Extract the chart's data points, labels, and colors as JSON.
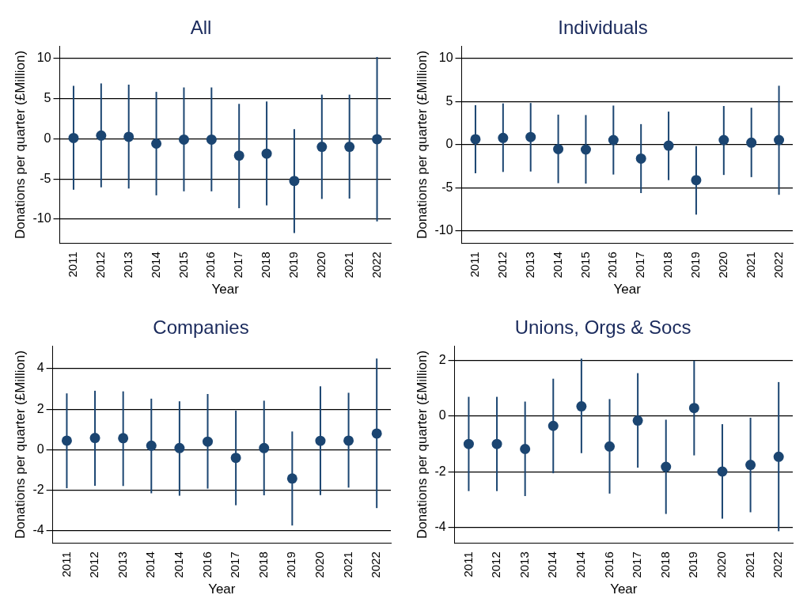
{
  "chart_data": [
    {
      "type": "scatter",
      "title": "All",
      "xlabel": "Year",
      "ylabel": "Donations per quarter (£Million)",
      "categories": [
        "2011",
        "2012",
        "2013",
        "2014",
        "2015",
        "2016",
        "2017",
        "2018",
        "2019",
        "2020",
        "2021",
        "2022"
      ],
      "series": [
        {
          "color": "#1b4571",
          "values": [
            0.1,
            0.4,
            0.25,
            -0.6,
            -0.1,
            -0.1,
            -2.1,
            -1.85,
            -5.25,
            -1.0,
            -1.0,
            -0.05
          ],
          "errors": [
            [
              -6.35,
              6.6
            ],
            [
              -6.05,
              6.9
            ],
            [
              -6.2,
              6.75
            ],
            [
              -7.05,
              5.85
            ],
            [
              -6.55,
              6.4
            ],
            [
              -6.55,
              6.4
            ],
            [
              -8.65,
              4.35
            ],
            [
              -8.3,
              4.65
            ],
            [
              -11.75,
              1.2
            ],
            [
              -7.5,
              5.5
            ],
            [
              -7.45,
              5.5
            ],
            [
              -10.3,
              10.2
            ]
          ]
        }
      ],
      "ylim": [
        -13,
        11.5
      ],
      "yticks": [
        -10,
        -5,
        0,
        5,
        10
      ],
      "grid": "y",
      "marker": "circle",
      "legend": false
    },
    {
      "type": "scatter",
      "title": "Individuals",
      "xlabel": "Year",
      "ylabel": "Donations per quarter (£Million)",
      "categories": [
        "2011",
        "2012",
        "2013",
        "2014",
        "2015",
        "2016",
        "2017",
        "2018",
        "2019",
        "2020",
        "2021",
        "2022"
      ],
      "series": [
        {
          "color": "#1b4571",
          "values": [
            0.65,
            0.8,
            0.9,
            -0.5,
            -0.55,
            0.55,
            -1.6,
            -0.1,
            -4.1,
            0.55,
            0.25,
            0.55
          ],
          "errors": [
            [
              -3.3,
              4.6
            ],
            [
              -3.15,
              4.8
            ],
            [
              -3.1,
              4.85
            ],
            [
              -4.45,
              3.5
            ],
            [
              -4.5,
              3.45
            ],
            [
              -3.45,
              4.55
            ],
            [
              -5.6,
              2.4
            ],
            [
              -4.1,
              3.85
            ],
            [
              -8.1,
              -0.15
            ],
            [
              -3.5,
              4.5
            ],
            [
              -3.75,
              4.3
            ],
            [
              -5.8,
              6.85
            ]
          ]
        }
      ],
      "ylim": [
        -11.4,
        11.4
      ],
      "yticks": [
        -10,
        -5,
        0,
        5,
        10
      ],
      "grid": "y",
      "marker": "circle",
      "legend": false
    },
    {
      "type": "scatter",
      "title": "Companies",
      "xlabel": "Year",
      "ylabel": "Donations per quarter (£Million)",
      "categories": [
        "2011",
        "2012",
        "2013",
        "2014",
        "2014",
        "2016",
        "2017",
        "2018",
        "2019",
        "2020",
        "2021",
        "2022"
      ],
      "series": [
        {
          "color": "#1b4571",
          "values": [
            0.45,
            0.58,
            0.57,
            0.2,
            0.08,
            0.4,
            -0.4,
            0.08,
            -1.42,
            0.44,
            0.45,
            0.8
          ],
          "errors": [
            [
              -1.9,
              2.78
            ],
            [
              -1.78,
              2.91
            ],
            [
              -1.79,
              2.88
            ],
            [
              -2.15,
              2.52
            ],
            [
              -2.27,
              2.39
            ],
            [
              -1.92,
              2.75
            ],
            [
              -2.74,
              1.93
            ],
            [
              -2.25,
              2.42
            ],
            [
              -3.74,
              0.9
            ],
            [
              -2.24,
              3.13
            ],
            [
              -1.87,
              2.81
            ],
            [
              -2.88,
              4.5
            ]
          ]
        }
      ],
      "ylim": [
        -4.6,
        5.1
      ],
      "yticks": [
        -4,
        -2,
        0,
        2,
        4
      ],
      "grid": "y",
      "marker": "circle",
      "legend": false
    },
    {
      "type": "scatter",
      "title": "Unions, Orgs & Socs",
      "xlabel": "Year",
      "ylabel": "Donations per quarter (£Million)",
      "categories": [
        "2011",
        "2012",
        "2013",
        "2014",
        "2014",
        "2016",
        "2017",
        "2018",
        "2019",
        "2020",
        "2021",
        "2022"
      ],
      "series": [
        {
          "color": "#1b4571",
          "values": [
            -1.0,
            -1.0,
            -1.18,
            -0.35,
            0.35,
            -1.09,
            -0.16,
            -1.82,
            0.29,
            -1.99,
            -1.75,
            -1.46
          ],
          "errors": [
            [
              -2.69,
              0.69
            ],
            [
              -2.69,
              0.69
            ],
            [
              -2.87,
              0.52
            ],
            [
              -2.05,
              1.34
            ],
            [
              -1.33,
              2.06
            ],
            [
              -2.78,
              0.61
            ],
            [
              -1.85,
              1.54
            ],
            [
              -3.51,
              -0.13
            ],
            [
              -1.41,
              1.99
            ],
            [
              -3.68,
              -0.29
            ],
            [
              -3.45,
              -0.06
            ],
            [
              -4.13,
              1.22
            ]
          ]
        }
      ],
      "ylim": [
        -4.55,
        2.5
      ],
      "yticks": [
        -4,
        -2,
        0,
        2
      ],
      "grid": "y",
      "marker": "circle",
      "legend": false
    }
  ]
}
